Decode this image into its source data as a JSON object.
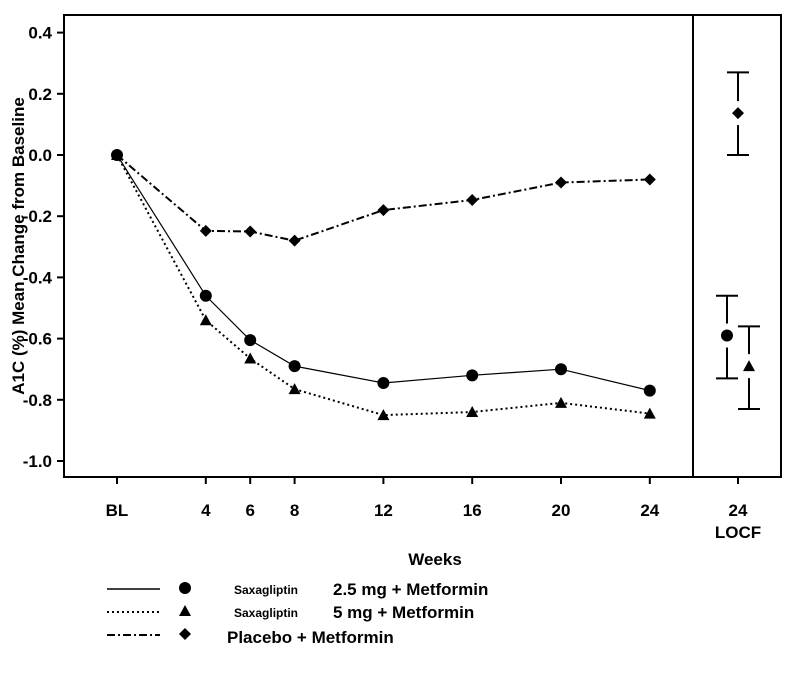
{
  "chart_data": {
    "type": "line",
    "title": "",
    "xlabel": "Weeks",
    "ylabel": "A1C (%) Mean Change from Baseline",
    "ylim": [
      -1.0,
      0.4
    ],
    "yticks": [
      "-1.0",
      "-0.8",
      "-0.6",
      "-0.4",
      "-0.2",
      "0.0",
      "0.2",
      "0.4"
    ],
    "x": [
      0,
      4,
      6,
      8,
      12,
      16,
      20,
      24
    ],
    "xtick_labels": [
      "BL",
      "4",
      "6",
      "8",
      "12",
      "16",
      "20",
      "24"
    ],
    "locf_label": [
      "24",
      "LOCF"
    ],
    "grid": false,
    "legend_placement": "bottom-left",
    "series": [
      {
        "name_prefix": "Saxagliptin",
        "name": "2.5 mg + Metformin",
        "marker": "circle",
        "line": "solid",
        "values": [
          0,
          -0.46,
          -0.605,
          -0.69,
          -0.745,
          -0.72,
          -0.7,
          -0.77
        ],
        "locf": {
          "value": -0.59,
          "lower": -0.73,
          "upper": -0.46
        }
      },
      {
        "name_prefix": "Saxagliptin",
        "name": "5 mg + Metformin",
        "marker": "triangle",
        "line": "dotted",
        "values": [
          0,
          -0.54,
          -0.665,
          -0.765,
          -0.85,
          -0.84,
          -0.81,
          -0.845
        ],
        "locf": {
          "value": -0.69,
          "lower": -0.83,
          "upper": -0.56
        }
      },
      {
        "name_prefix": "",
        "name": "Placebo + Metformin",
        "marker": "diamond",
        "line": "dashdot",
        "values": [
          0,
          -0.248,
          -0.25,
          -0.28,
          -0.18,
          -0.147,
          -0.09,
          -0.08
        ],
        "locf": {
          "value": 0.137,
          "lower": 0.0,
          "upper": 0.27
        }
      }
    ]
  }
}
